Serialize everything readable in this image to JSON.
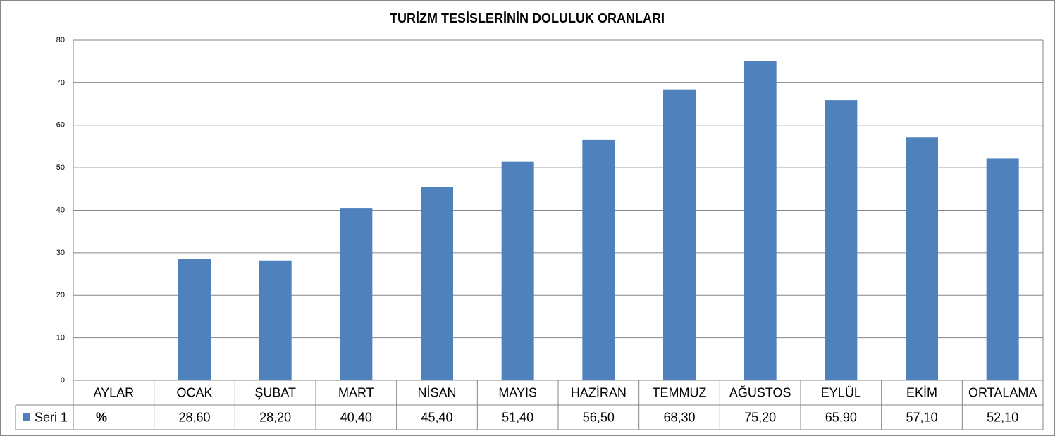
{
  "chart_data": {
    "type": "bar",
    "title": "TURİZM TESİSLERİNİN DOLULUK ORANLARI",
    "categories": [
      "AYLAR",
      "OCAK",
      "ŞUBAT",
      "MART",
      "NİSAN",
      "MAYIS",
      "HAZİRAN",
      "TEMMUZ",
      "AĞUSTOS",
      "EYLÜL",
      "EKİM",
      "ORTALAMA"
    ],
    "series": [
      {
        "name": "Seri 1",
        "color": "#4f81bd",
        "values": [
          null,
          28.6,
          28.2,
          40.4,
          45.4,
          51.4,
          56.5,
          68.3,
          75.2,
          65.9,
          57.1,
          52.1
        ],
        "value_labels": [
          "%",
          "28,60",
          "28,20",
          "40,40",
          "45,40",
          "51,40",
          "56,50",
          "68,30",
          "75,20",
          "65,90",
          "57,10",
          "52,10"
        ]
      }
    ],
    "ylim": [
      0,
      80
    ],
    "yticks": [
      0,
      10,
      20,
      30,
      40,
      50,
      60,
      70,
      80
    ],
    "grid": true
  }
}
